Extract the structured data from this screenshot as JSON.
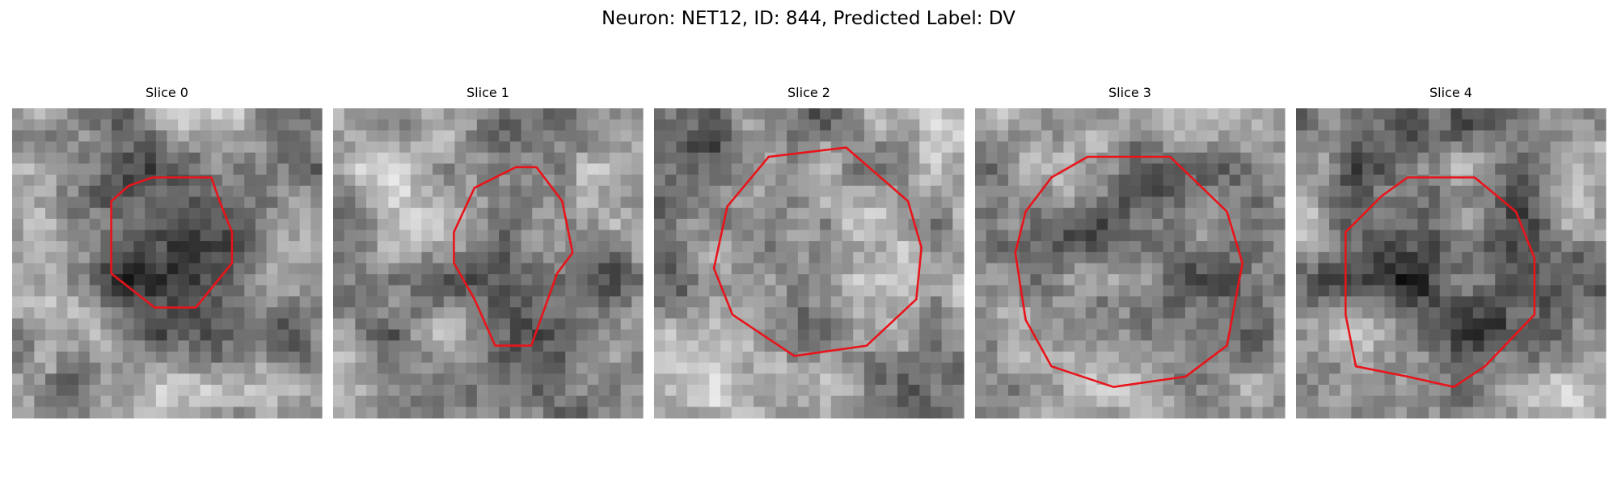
{
  "header": {
    "title": "Neuron: NET12, ID: 844, Predicted Label: DV"
  },
  "panels": [
    {
      "title": "Slice 0"
    },
    {
      "title": "Slice 1"
    },
    {
      "title": "Slice 2"
    },
    {
      "title": "Slice 3"
    },
    {
      "title": "Slice 4"
    }
  ]
}
